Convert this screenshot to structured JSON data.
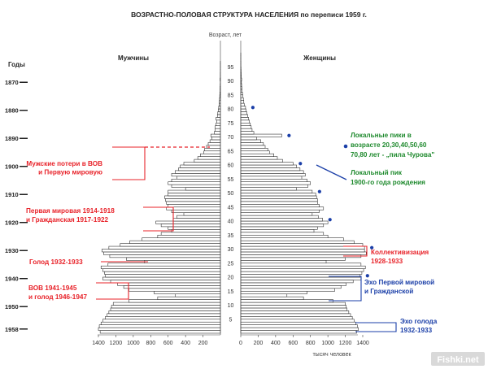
{
  "chart_data": {
    "type": "bar",
    "orientation": "horizontal-pyramid",
    "title": "ВОЗРАСТНО-ПОЛОВАЯ СТРУКТУРА НАСЕЛЕНИЯ по переписи 1959 г.",
    "age_axis_label": "Возраст, лет",
    "x_axis_label": "тысяч человек",
    "years_axis_label": "Годы",
    "male_label": "Мужчины",
    "female_label": "Женщины",
    "x_max": 1400,
    "x_ticks_male": [
      "1400",
      "1200",
      "1000",
      "800",
      "600",
      "400",
      "200"
    ],
    "x_ticks_female": [
      "0",
      "200",
      "400",
      "600",
      "800",
      "1000",
      "1200",
      "1400"
    ],
    "age_ticks": [
      "5",
      "10",
      "15",
      "20",
      "25",
      "30",
      "35",
      "40",
      "45",
      "50",
      "55",
      "60",
      "65",
      "70",
      "75",
      "80",
      "85",
      "90",
      "95"
    ],
    "year_ticks": [
      {
        "label": "1870",
        "age": 89
      },
      {
        "label": "1880",
        "age": 79
      },
      {
        "label": "1890",
        "age": 69
      },
      {
        "label": "1900",
        "age": 59
      },
      {
        "label": "1910",
        "age": 49
      },
      {
        "label": "1920",
        "age": 39
      },
      {
        "label": "1930",
        "age": 29
      },
      {
        "label": "1940",
        "age": 19
      },
      {
        "label": "1950",
        "age": 9
      },
      {
        "label": "1958",
        "age": 1
      }
    ],
    "ages": [
      0,
      1,
      2,
      3,
      4,
      5,
      6,
      7,
      8,
      9,
      10,
      11,
      12,
      13,
      14,
      15,
      16,
      17,
      18,
      19,
      20,
      21,
      22,
      23,
      24,
      25,
      26,
      27,
      28,
      29,
      30,
      31,
      32,
      33,
      34,
      35,
      36,
      37,
      38,
      39,
      40,
      41,
      42,
      43,
      44,
      45,
      46,
      47,
      48,
      49,
      50,
      51,
      52,
      53,
      54,
      55,
      56,
      57,
      58,
      59,
      60,
      61,
      62,
      63,
      64,
      65,
      66,
      67,
      68,
      69,
      70,
      71,
      72,
      73,
      74,
      75,
      76,
      77,
      78,
      79,
      80,
      81,
      82,
      83,
      84,
      85,
      86,
      87,
      88,
      89,
      90,
      91,
      92,
      93,
      94,
      95,
      96,
      97,
      98,
      99
    ],
    "series": [
      {
        "name": "Мужчины",
        "values": [
          1380,
          1400,
          1390,
          1370,
          1350,
          1320,
          1300,
          1280,
          1260,
          1250,
          1230,
          1050,
          720,
          520,
          760,
          1050,
          1110,
          1180,
          1260,
          1350,
          1320,
          1330,
          1350,
          1370,
          1290,
          870,
          1080,
          1270,
          1340,
          1360,
          1280,
          1150,
          1040,
          900,
          720,
          680,
          560,
          600,
          680,
          740,
          540,
          500,
          420,
          560,
          620,
          600,
          620,
          630,
          640,
          600,
          600,
          400,
          560,
          600,
          560,
          500,
          560,
          520,
          480,
          460,
          420,
          300,
          260,
          230,
          190,
          180,
          160,
          140,
          120,
          100,
          110,
          70,
          60,
          60,
          50,
          40,
          50,
          35,
          30,
          25,
          20,
          14,
          12,
          10,
          8,
          6,
          4,
          4,
          3,
          2,
          4,
          2,
          2,
          1,
          1,
          1,
          1,
          0,
          0,
          0
        ]
      },
      {
        "name": "Женщины",
        "values": [
          1330,
          1350,
          1340,
          1320,
          1300,
          1280,
          1260,
          1240,
          1220,
          1210,
          1200,
          1060,
          720,
          530,
          760,
          1080,
          1150,
          1210,
          1290,
          1380,
          1370,
          1390,
          1410,
          1430,
          1380,
          980,
          1200,
          1380,
          1440,
          1420,
          1420,
          1400,
          1300,
          1180,
          1000,
          950,
          840,
          880,
          950,
          1000,
          940,
          890,
          820,
          900,
          950,
          900,
          880,
          880,
          870,
          860,
          820,
          640,
          770,
          800,
          760,
          700,
          740,
          720,
          680,
          640,
          600,
          480,
          420,
          380,
          330,
          310,
          280,
          260,
          230,
          180,
          470,
          150,
          130,
          120,
          110,
          100,
          90,
          80,
          70,
          60,
          55,
          40,
          35,
          30,
          25,
          20,
          15,
          12,
          10,
          8,
          10,
          6,
          5,
          4,
          3,
          2,
          2,
          1,
          1,
          1
        ]
      }
    ],
    "local_peak_ages": [
      20,
      30,
      40,
      50,
      60,
      70,
      80
    ]
  },
  "annotations": {
    "male": [
      {
        "lines": [
          "Мужские потери в ВОВ",
          "и Первую мировую"
        ]
      },
      {
        "lines": [
          "Первая мировая 1914-1918",
          "и Гражданская 1917-1922"
        ]
      },
      {
        "lines": [
          "Голод 1932-1933"
        ]
      },
      {
        "lines": [
          "ВОВ 1941-1945",
          "и голод 1946-1947"
        ]
      }
    ],
    "female": [
      {
        "lines": [
          "Локальные пики в",
          "возрасте 20,30,40,50,60",
          "70,80 лет - „пила Чурова\""
        ]
      },
      {
        "lines": [
          "Локальный пик",
          "1900-го года рождения"
        ]
      },
      {
        "lines": [
          "Коллективизация",
          "1928-1933"
        ]
      },
      {
        "lines": [
          "Эхо Первой мировой",
          "и Гражданской"
        ]
      },
      {
        "lines": [
          "Эхо голода",
          "1932-1933"
        ]
      }
    ],
    "colors": {
      "red": "#e8232a",
      "green": "#1f8a2e",
      "blue": "#1b3fa8"
    }
  },
  "watermark": "Fishki.net"
}
